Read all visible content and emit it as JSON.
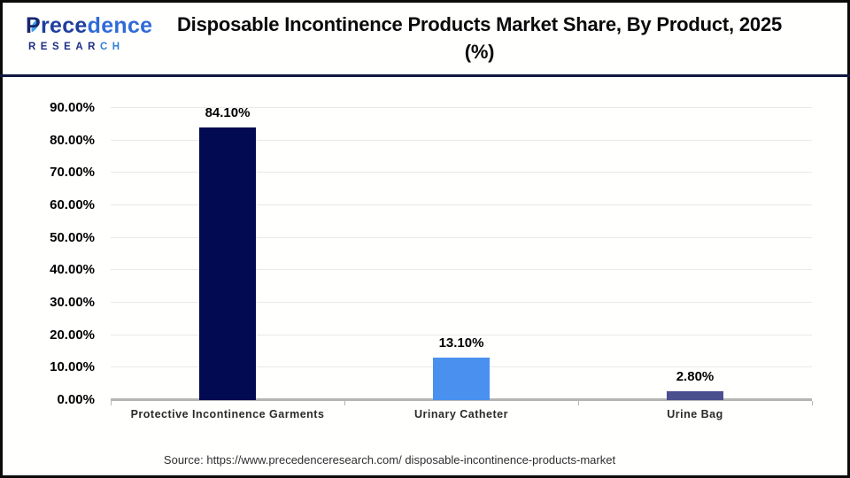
{
  "header": {
    "title_line1": "Disposable Incontinence Products Market Share, By Product, 2025",
    "title_line2": "(%)"
  },
  "logo": {
    "p": "P",
    "rest1": "rece",
    "rest2": "dence",
    "sub_main": "RESEAR",
    "sub_accent": "CH"
  },
  "footer": {
    "source": "Source: https://www.precedenceresearch.com/ disposable-incontinence-products-market"
  },
  "brand_colors": {
    "navy": "#17266d",
    "blue": "#2f6bd8",
    "light_blue": "#3fa0e8",
    "divider_navy": "#101840"
  },
  "chart_data": {
    "type": "bar",
    "title": "Disposable Incontinence Products Market Share, By Product, 2025 (%)",
    "categories": [
      "Protective Incontinence Garments",
      "Urinary Catheter",
      "Urine Bag"
    ],
    "values": [
      84.1,
      13.1,
      2.8
    ],
    "value_labels": [
      "84.10%",
      "13.10%",
      "2.80%"
    ],
    "bar_colors": [
      "#020a52",
      "#4a90ee",
      "#4a4f8e"
    ],
    "xlabel": "",
    "ylabel": "",
    "ylim": [
      0,
      90
    ],
    "yticks": [
      0,
      10,
      20,
      30,
      40,
      50,
      60,
      70,
      80,
      90
    ],
    "ytick_labels": [
      "0.00%",
      "10.00%",
      "20.00%",
      "30.00%",
      "40.00%",
      "50.00%",
      "60.00%",
      "70.00%",
      "80.00%",
      "90.00%"
    ],
    "grid": true,
    "legend": false,
    "axis_color": "#b5b5b5",
    "gridline_color": "#e9e9e9"
  }
}
